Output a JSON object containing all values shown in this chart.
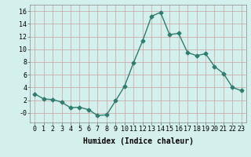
{
  "x": [
    0,
    1,
    2,
    3,
    4,
    5,
    6,
    7,
    8,
    9,
    10,
    11,
    12,
    13,
    14,
    15,
    16,
    17,
    18,
    19,
    20,
    21,
    22,
    23
  ],
  "y": [
    3.0,
    2.2,
    2.1,
    1.7,
    0.8,
    0.9,
    0.5,
    -0.4,
    -0.3,
    1.9,
    4.2,
    7.9,
    11.3,
    15.2,
    15.8,
    12.3,
    12.5,
    9.5,
    9.0,
    9.3,
    7.3,
    6.2,
    4.0,
    3.5
  ],
  "line_color": "#2e7d6e",
  "marker": "D",
  "marker_size": 2.5,
  "bg_color": "#d4f0ec",
  "grid_color_major": "#c8ddd8",
  "grid_color_minor": "#c8ddd8",
  "xlabel": "Humidex (Indice chaleur)",
  "xlim": [
    -0.5,
    23.5
  ],
  "ylim": [
    -1.5,
    17.0
  ],
  "yticks": [
    0,
    2,
    4,
    6,
    8,
    10,
    12,
    14,
    16
  ],
  "ytick_labels": [
    "-0",
    "2",
    "4",
    "6",
    "8",
    "10",
    "12",
    "14",
    "16"
  ],
  "xtick_labels": [
    "0",
    "1",
    "2",
    "3",
    "4",
    "5",
    "6",
    "7",
    "8",
    "9",
    "10",
    "11",
    "12",
    "13",
    "14",
    "15",
    "16",
    "17",
    "18",
    "19",
    "20",
    "21",
    "22",
    "23"
  ],
  "line_width": 1.0,
  "font_size": 7
}
